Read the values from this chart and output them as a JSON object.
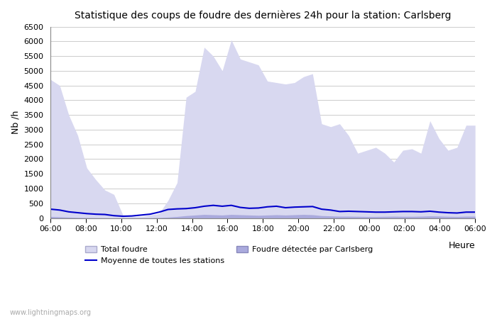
{
  "title": "Statistique des coups de foudre des dernières 24h pour la station: Carlsberg",
  "xlabel": "Heure",
  "ylabel": "Nb /h",
  "xlim": [
    0,
    48
  ],
  "ylim": [
    0,
    6500
  ],
  "yticks": [
    0,
    500,
    1000,
    1500,
    2000,
    2500,
    3000,
    3500,
    4000,
    4500,
    5000,
    5500,
    6000,
    6500
  ],
  "xtick_labels": [
    "06:00",
    "08:00",
    "10:00",
    "12:00",
    "14:00",
    "16:00",
    "18:00",
    "20:00",
    "22:00",
    "00:00",
    "02:00",
    "04:00",
    "06:00"
  ],
  "bg_color": "#ffffff",
  "fill_total_color": "#d8d8f0",
  "fill_carlsberg_color": "#aaaadd",
  "line_color": "#0000cc",
  "watermark": "www.lightningmaps.org",
  "legend_total": "Total foudre",
  "legend_moyenne": "Moyenne de toutes les stations",
  "legend_carlsberg": "Foudre détectée par Carlsberg",
  "total_foudre": [
    4700,
    4500,
    3500,
    2800,
    1700,
    1300,
    950,
    800,
    100,
    50,
    50,
    100,
    150,
    600,
    1200,
    4100,
    4300,
    5800,
    5500,
    5000,
    6050,
    5400,
    5300,
    5200,
    4650,
    4600,
    4550,
    4600,
    4800,
    4900,
    3200,
    3100,
    3200,
    2800,
    2200,
    2300,
    2400,
    2200,
    1900,
    2300,
    2350,
    2200,
    3300,
    2700,
    2300,
    2400,
    3150,
    3150
  ],
  "moyenne": [
    300,
    270,
    210,
    180,
    150,
    130,
    120,
    80,
    60,
    70,
    100,
    130,
    200,
    290,
    310,
    320,
    350,
    400,
    430,
    400,
    430,
    360,
    330,
    340,
    380,
    400,
    350,
    370,
    380,
    390,
    300,
    270,
    220,
    230,
    220,
    210,
    200,
    200,
    210,
    220,
    220,
    210,
    230,
    200,
    180,
    170,
    200,
    200
  ],
  "carlsberg": [
    50,
    40,
    30,
    20,
    15,
    10,
    8,
    5,
    3,
    3,
    5,
    8,
    15,
    30,
    50,
    80,
    100,
    120,
    110,
    100,
    120,
    110,
    100,
    90,
    100,
    110,
    100,
    110,
    120,
    110,
    80,
    70,
    60,
    60,
    55,
    50,
    50,
    55,
    60,
    55,
    55,
    60,
    70,
    65,
    55,
    50,
    60,
    60
  ]
}
